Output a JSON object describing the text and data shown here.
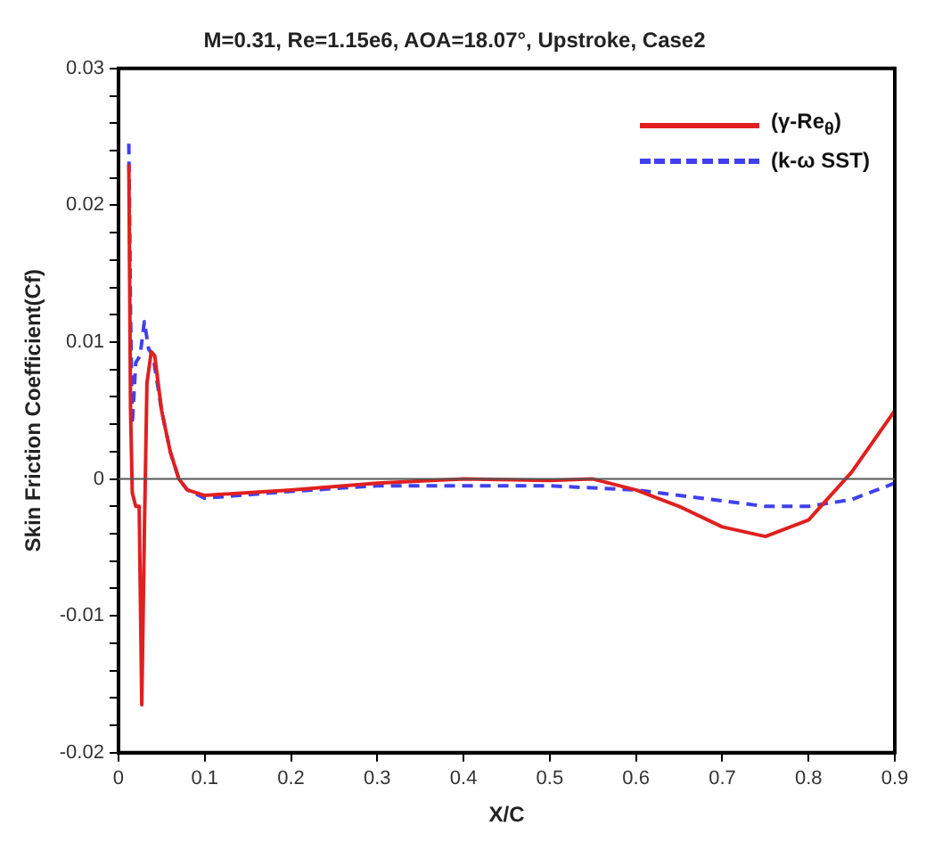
{
  "chart_data": {
    "type": "line",
    "title": "M=0.31, Re=1.15e6, AOA=18.07°, Upstroke, Case2",
    "xlabel": "X/C",
    "ylabel": "Skin Friction Coefficient(Cf)",
    "xlim": [
      0,
      0.9
    ],
    "xticks": [
      0,
      0.1,
      0.2,
      0.3,
      0.4,
      0.5,
      0.6,
      0.7,
      0.8,
      0.9
    ],
    "ylim": [
      -0.02,
      0.03
    ],
    "yticks": [
      -0.02,
      {
        "value": -0.018,
        "label": null
      },
      {
        "value": -0.016,
        "label": null
      },
      {
        "value": -0.014,
        "label": null
      },
      {
        "value": -0.012,
        "label": null
      },
      -0.01,
      {
        "value": -0.008,
        "label": null
      },
      {
        "value": -0.006,
        "label": null
      },
      {
        "value": -0.004,
        "label": null
      },
      {
        "value": -0.002,
        "label": null
      },
      0,
      {
        "value": 0.002,
        "label": null
      },
      {
        "value": 0.004,
        "label": null
      },
      {
        "value": 0.006,
        "label": null
      },
      {
        "value": 0.008,
        "label": null
      },
      0.01,
      {
        "value": 0.012,
        "label": null
      },
      {
        "value": 0.014,
        "label": null
      },
      {
        "value": 0.016,
        "label": null
      },
      {
        "value": 0.018,
        "label": null
      },
      0.02,
      {
        "value": 0.022,
        "label": null
      },
      {
        "value": 0.024,
        "label": null
      },
      {
        "value": 0.026,
        "label": null
      },
      {
        "value": 0.028,
        "label": null
      },
      0.03
    ],
    "grid": false,
    "legend": "top right",
    "marker": "none",
    "ref_lines": [
      {
        "axis": "y",
        "value": 0,
        "color": "#555555"
      }
    ],
    "series": [
      {
        "name": "(γ-Re$_{θ}$)",
        "color": "#e02020",
        "line_style": "solid",
        "x": [
          0.012,
          0.014,
          0.016,
          0.02,
          0.024,
          0.027,
          0.03,
          0.033,
          0.038,
          0.042,
          0.05,
          0.06,
          0.07,
          0.08,
          0.1,
          0.2,
          0.3,
          0.4,
          0.5,
          0.55,
          0.6,
          0.65,
          0.7,
          0.75,
          0.8,
          0.85,
          0.9
        ],
        "values": [
          0.023,
          0.005,
          -0.001,
          -0.002,
          -0.002,
          -0.0165,
          -0.004,
          0.007,
          0.0093,
          0.009,
          0.005,
          0.002,
          0.0,
          -0.0008,
          -0.0012,
          -0.0008,
          -0.0003,
          0,
          -0.0001,
          0,
          -0.0008,
          -0.002,
          -0.0035,
          -0.0042,
          -0.003,
          0.0005,
          0.005
        ]
      },
      {
        "name": "(k-ω SST)",
        "color": "#4040f0",
        "line_style": "dashed",
        "x": [
          0.012,
          0.014,
          0.016,
          0.02,
          0.025,
          0.03,
          0.035,
          0.04,
          0.05,
          0.06,
          0.07,
          0.08,
          0.1,
          0.2,
          0.3,
          0.4,
          0.5,
          0.6,
          0.7,
          0.75,
          0.8,
          0.85,
          0.9
        ],
        "values": [
          0.0245,
          0.012,
          0.004,
          0.0085,
          0.009,
          0.0115,
          0.0095,
          0.009,
          0.005,
          0.002,
          0.0,
          -0.0008,
          -0.0014,
          -0.0009,
          -0.0005,
          -0.0005,
          -0.0005,
          -0.0008,
          -0.0016,
          -0.002,
          -0.002,
          -0.0015,
          -0.0003
        ]
      }
    ]
  }
}
